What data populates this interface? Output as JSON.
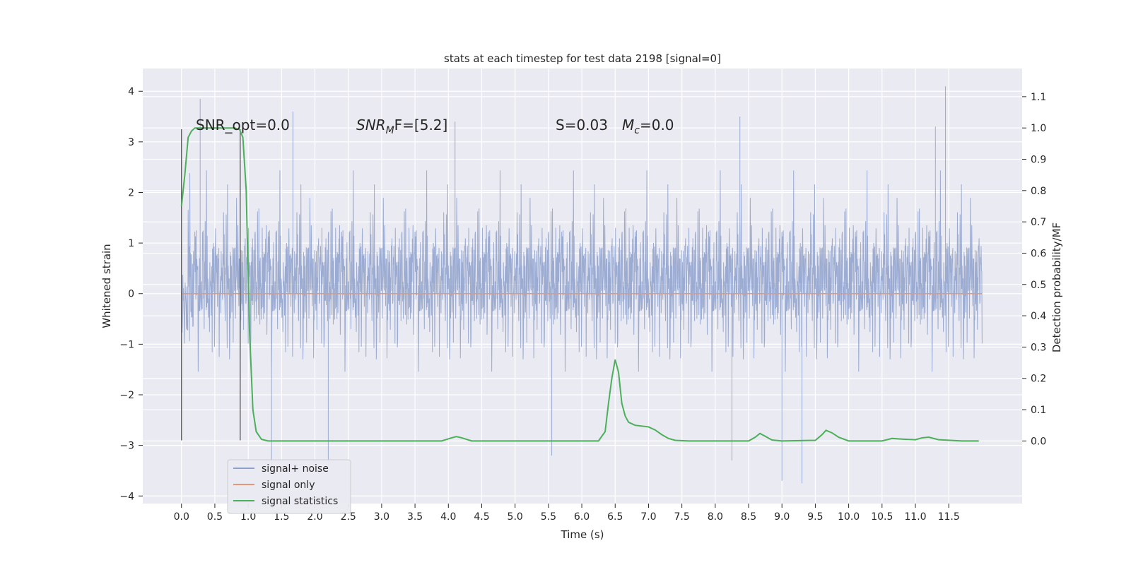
{
  "chart_data": {
    "type": "line",
    "title": "stats at each timestep for test data 2198 [signal=0]",
    "xlabel": "Time (s)",
    "ylabel_left": "Whitened strain",
    "ylabel_right": "Detection probability/MF",
    "xlim": [
      -0.58,
      12.6
    ],
    "ylim_left": [
      -4.15,
      4.45
    ],
    "ylim_right": [
      -0.2,
      1.19
    ],
    "grid": true,
    "x_ticks": [
      "0.0",
      "0.5",
      "1.0",
      "1.5",
      "2.0",
      "2.5",
      "3.0",
      "3.5",
      "4.0",
      "4.5",
      "5.0",
      "5.5",
      "6.0",
      "6.5",
      "7.0",
      "7.5",
      "8.0",
      "8.5",
      "9.0",
      "9.5",
      "10.0",
      "10.5",
      "11.0",
      "11.5"
    ],
    "y_ticks_left": [
      "4",
      "3",
      "2",
      "1",
      "0",
      "−1",
      "−2",
      "−3",
      "−4"
    ],
    "y_ticks_right": [
      "1.1",
      "1.0",
      "0.9",
      "0.8",
      "0.7",
      "0.6",
      "0.5",
      "0.4",
      "0.3",
      "0.2",
      "0.1",
      "0.0"
    ],
    "annotations": {
      "snr_opt": "SNR_opt=0.0",
      "snr_mf_prefix": "SNR",
      "snr_mf_sub": "M",
      "snr_mf_suffix": "F=[5.2]",
      "s_stat": "S=0.03",
      "mc_prefix": "M",
      "mc_sub": "c",
      "mc_suffix": "=0.0"
    },
    "series": [
      {
        "name": "signal+ noise",
        "color": "#8da0cb",
        "description_stat": "whitened strain noise, band approx -1.5 to 1.5, spikes to about ±3.5",
        "x_range": [
          0.0,
          12.0
        ],
        "spikes": [
          {
            "x": 0.28,
            "y": 3.85
          },
          {
            "x": 1.67,
            "y": 3.6
          },
          {
            "x": 4.1,
            "y": 3.4
          },
          {
            "x": 8.37,
            "y": 3.5
          },
          {
            "x": 11.3,
            "y": 3.3
          },
          {
            "x": 11.45,
            "y": 4.1
          },
          {
            "x": 1.35,
            "y": -3.5
          },
          {
            "x": 2.2,
            "y": -3.4
          },
          {
            "x": 9.0,
            "y": -3.7
          },
          {
            "x": 9.3,
            "y": -3.75
          },
          {
            "x": 5.55,
            "y": -3.2
          },
          {
            "x": 8.25,
            "y": -3.3
          }
        ]
      },
      {
        "name": "signal only",
        "color": "#e5977b",
        "x": [
          0.0,
          12.0
        ],
        "y": [
          0.0,
          0.0
        ]
      },
      {
        "name": "signal statistics",
        "color": "#4caf5a",
        "axis": "right",
        "x": [
          0.0,
          0.05,
          0.1,
          0.15,
          0.2,
          0.3,
          0.5,
          0.7,
          0.8,
          0.87,
          0.92,
          0.97,
          1.02,
          1.07,
          1.12,
          1.2,
          1.3,
          1.5,
          2.0,
          3.0,
          3.9,
          4.05,
          4.12,
          4.2,
          4.35,
          4.6,
          5.0,
          5.5,
          6.0,
          6.25,
          6.35,
          6.4,
          6.45,
          6.5,
          6.55,
          6.6,
          6.65,
          6.7,
          6.8,
          7.0,
          7.1,
          7.2,
          7.3,
          7.4,
          7.6,
          8.0,
          8.5,
          8.6,
          8.67,
          8.75,
          8.85,
          9.0,
          9.5,
          9.6,
          9.66,
          9.75,
          9.85,
          10.0,
          10.5,
          10.65,
          10.8,
          11.0,
          11.1,
          11.2,
          11.35,
          11.7,
          11.95
        ],
        "y": [
          0.75,
          0.85,
          0.97,
          0.99,
          1.0,
          1.0,
          1.0,
          1.0,
          1.0,
          0.995,
          0.97,
          0.8,
          0.35,
          0.1,
          0.03,
          0.005,
          0.0,
          0.0,
          0.0,
          0.0,
          0.0,
          0.01,
          0.014,
          0.01,
          0.0,
          0.0,
          0.0,
          0.0,
          0.0,
          0.0,
          0.03,
          0.12,
          0.2,
          0.26,
          0.22,
          0.12,
          0.08,
          0.06,
          0.05,
          0.045,
          0.035,
          0.02,
          0.008,
          0.002,
          0.0,
          0.0,
          0.0,
          0.012,
          0.024,
          0.015,
          0.003,
          0.0,
          0.002,
          0.02,
          0.034,
          0.026,
          0.012,
          0.0,
          0.0,
          0.008,
          0.006,
          0.004,
          0.01,
          0.012,
          0.004,
          0.0,
          0.0
        ]
      }
    ],
    "vlines": [
      {
        "x": 0.0,
        "y": [
          -2.9,
          3.25
        ],
        "color": "#555555"
      },
      {
        "x": 0.88,
        "y": [
          -2.9,
          3.25
        ],
        "color": "#555555"
      }
    ],
    "legend": {
      "placement": "lower-left",
      "entries": [
        "signal+ noise",
        "signal only",
        "signal statistics"
      ]
    }
  }
}
